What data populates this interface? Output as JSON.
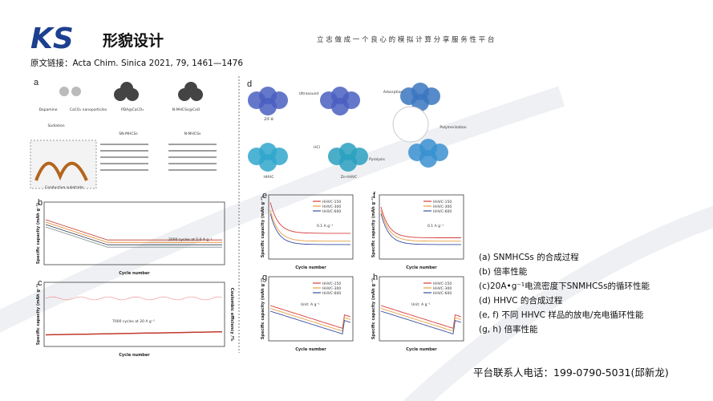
{
  "header": {
    "logo": "KS",
    "title": "形貌设计",
    "tagline": "立 志 做 成 一 个 良 心 的 模 拟 计 算 分 享 服 务 性 平 台"
  },
  "source": "原文链接：Acta Chim. Sinica 2021, 79, 1461—1476",
  "figure": {
    "a": {
      "label": "a",
      "texts": [
        "Dopamine",
        "CaCO₃ nanoparticles",
        "PDA@CaCO₃",
        "N-MHCSs@CaO",
        "SN-MHCSs",
        "N-MHCSs",
        "Sodiation",
        "Conductive substrate"
      ]
    },
    "b": {
      "label": "b",
      "ylabel": "Specific capacity (mAh g⁻¹)",
      "xlabel": "Cycle number",
      "note": "2000 cycles at 5.0 A g⁻¹"
    },
    "c": {
      "label": "c",
      "ylabel": "Specific capacity (mAh g⁻¹)",
      "y2label": "Coulombic efficiency /%",
      "xlabel": "Cycle number",
      "note": "7000 cycles at 20 A g⁻¹"
    },
    "d": {
      "label": "d",
      "texts": [
        "ZIF-8",
        "Ultrasound",
        "Adsorption",
        "Polymerization",
        "Pyrolysis",
        "HCl",
        "Zn-HHVC",
        "HHVC"
      ]
    },
    "e": {
      "label": "e",
      "note": "0.1 A g⁻¹"
    },
    "f": {
      "label": "f",
      "note": "0.1 A g⁻¹"
    },
    "g": {
      "label": "g",
      "note": "Unit: A g⁻¹"
    },
    "h": {
      "label": "h",
      "note": "Unit: A g⁻¹"
    },
    "legend": [
      "HHVC-150",
      "HHVC-300",
      "HHVC-600"
    ],
    "ylabel": "Specific capacity (mAh g⁻¹)",
    "xlabel": "Cycle number"
  },
  "captions": [
    "(a) SNMHCSs 的合成过程",
    "(b) 倍率性能",
    "(c)20A•g⁻¹电流密度下SNMHCSs的循环性能",
    "(d) HHVC 的合成过程",
    "(e, f) 不同 HHVC 样品的放电/充电循环性能",
    "(g, h) 倍率性能"
  ],
  "contact": "平台联系人电话：199-0790-5031(邱新龙)"
}
